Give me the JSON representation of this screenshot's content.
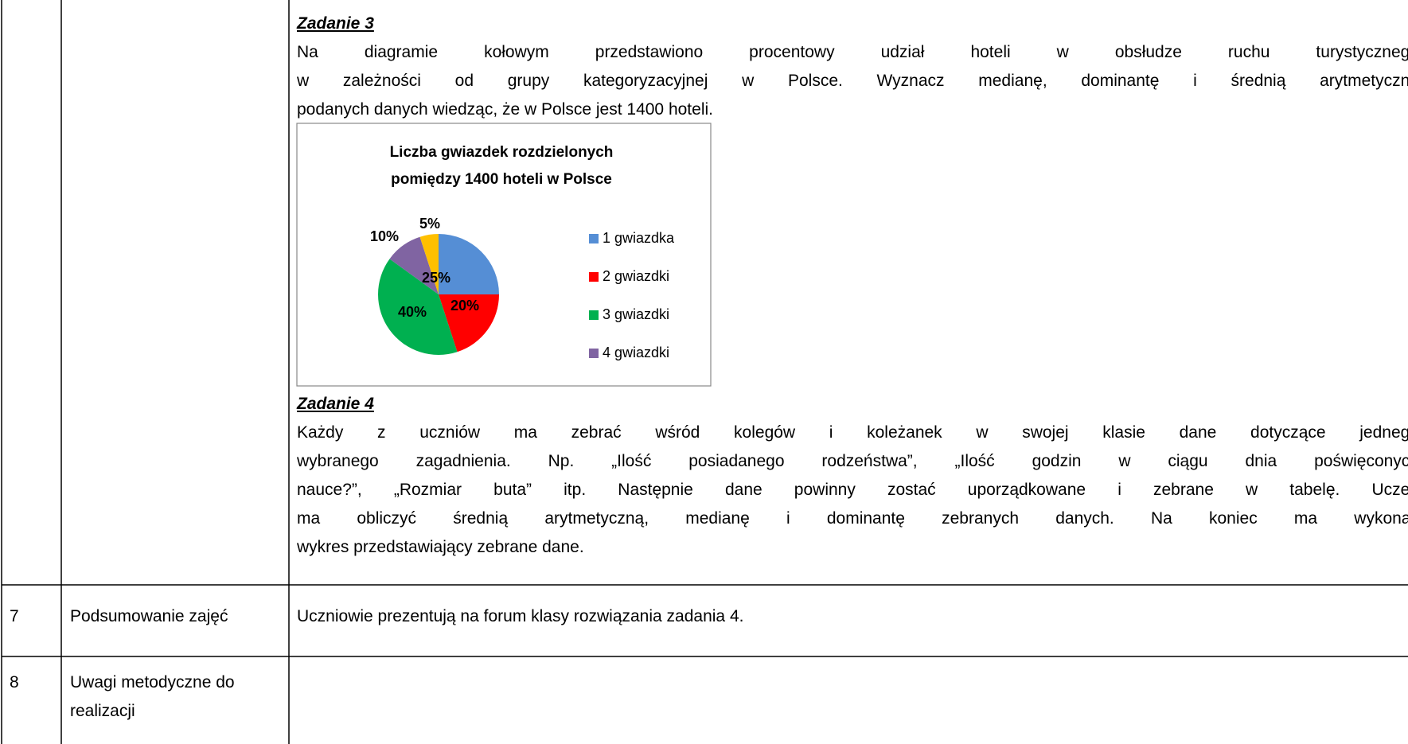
{
  "tasks": [
    {
      "title": "Zadanie 3",
      "lines": [
        "Na diagramie kołowym przedstawiono procentowy udział hoteli w obsłudze ruchu turystycznego",
        "w zależności od grupy kategoryzacyjnej w Polsce. Wyznacz medianę, dominantę i średnią arytmetyczną",
        "podanych danych wiedząc, że w Polsce jest 1400 hoteli."
      ]
    },
    {
      "title": "Zadanie 4",
      "lines": [
        "Każdy z uczniów ma zebrać wśród kolegów i koleżanek w swojej klasie dane dotyczące jednego",
        "wybranego zagadnienia. Np. „Ilość posiadanego rodzeństwa”, „Ilość godzin w ciągu dnia poświęconych",
        "nauce?”, „Rozmiar buta” itp. Następnie dane powinny zostać uporządkowane i zebrane w tabelę. Uczeń",
        "ma obliczyć średnią arytmetyczną, medianę i dominantę zebranych danych. Na koniec ma wykonać",
        "wykres przedstawiający zebrane dane."
      ]
    }
  ],
  "chart_data": {
    "type": "pie",
    "title": [
      "Liczba gwiazdek rozdzielonych",
      "pomiędzy 1400 hoteli w Polsce"
    ],
    "categories": [
      "1 gwiazdka",
      "2 gwiazdki",
      "3 gwiazdki",
      "4 gwiazdki",
      null
    ],
    "values": [
      25,
      20,
      40,
      10,
      5
    ],
    "value_labels": [
      "25%",
      "20%",
      "40%",
      "10%",
      "5%"
    ],
    "colors": [
      "#558ed5",
      "#ff0000",
      "#00b050",
      "#8064a2",
      "#ffc000"
    ]
  },
  "rows": [
    {
      "number": "7",
      "name": [
        "Podsumowanie zajęć"
      ],
      "content": "Uczniowie prezentują na forum klasy rozwiązania zadania 4."
    },
    {
      "number": "8",
      "name": [
        "Uwagi metodyczne do",
        "realizacji"
      ]
    }
  ]
}
